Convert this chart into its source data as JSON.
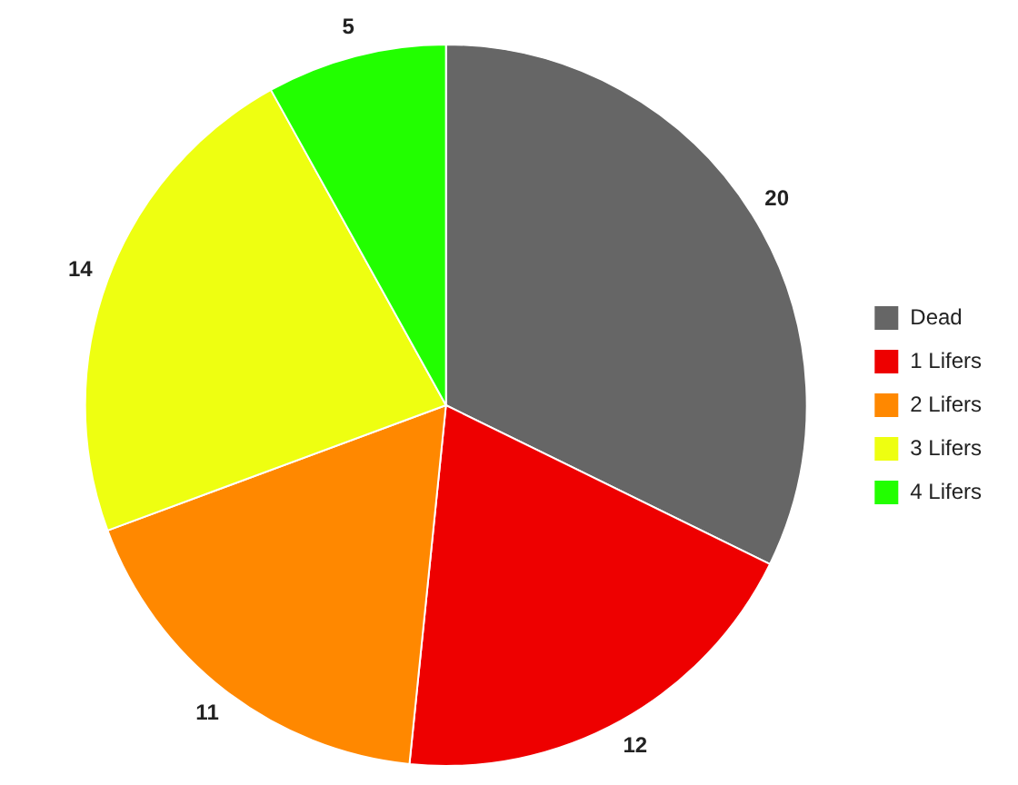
{
  "chart_data": {
    "type": "pie",
    "categories": [
      "Dead",
      "1 Lifers",
      "2 Lifers",
      "3 Lifers",
      "4 Lifers"
    ],
    "values": [
      20,
      12,
      11,
      14,
      5
    ],
    "colors": [
      "#666666",
      "#ee0000",
      "#ff8800",
      "#eeff11",
      "#22ff00"
    ],
    "data_labels": true,
    "legend": "right"
  }
}
